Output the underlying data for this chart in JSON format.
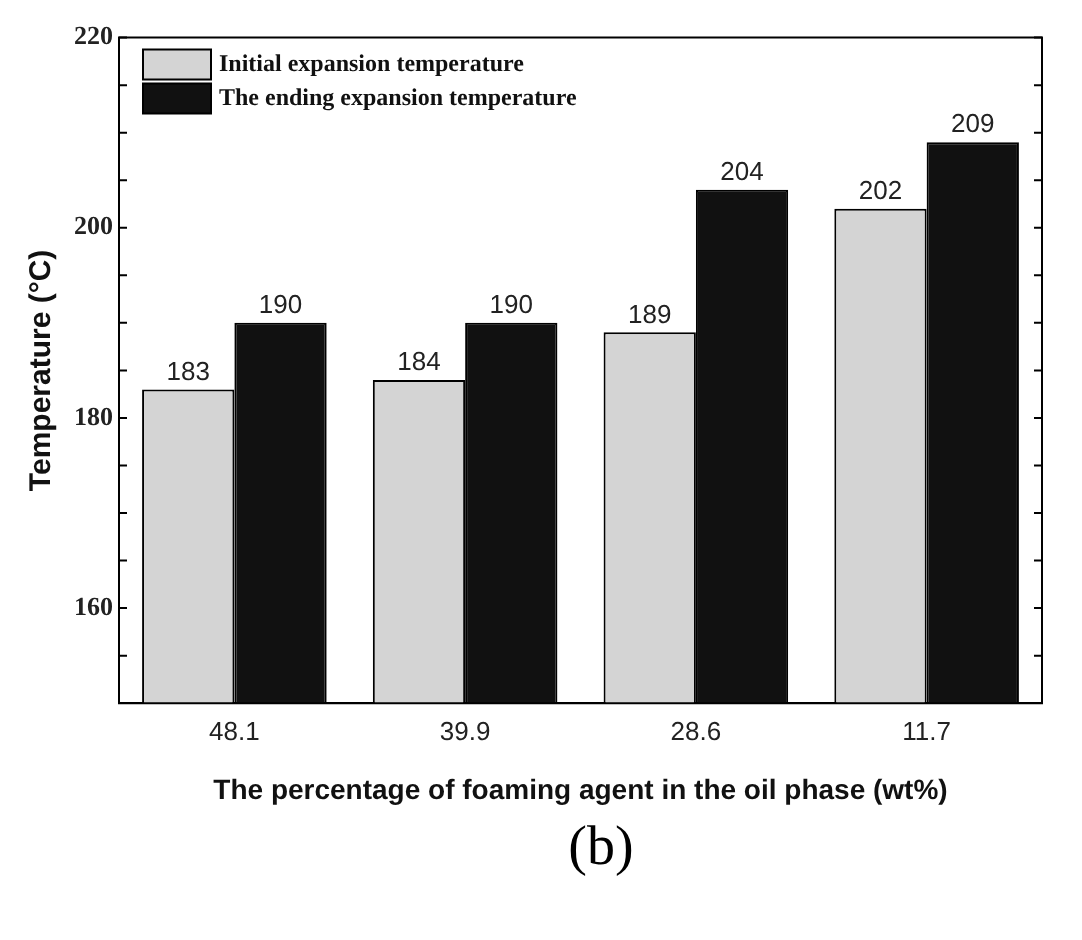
{
  "chart_data": {
    "type": "bar",
    "xlabel": "The percentage of foaming agent in the oil phase (wt%)",
    "ylabel": "Temperature (°C)",
    "categories": [
      "48.1",
      "39.9",
      "28.6",
      "11.7"
    ],
    "series": [
      {
        "name": "Initial expansion temperature",
        "color": "#d4d4d4",
        "values": [
          183,
          184,
          189,
          202
        ]
      },
      {
        "name": "The ending expansion temperature",
        "color": "#111111",
        "values": [
          190,
          190,
          204,
          209
        ]
      }
    ],
    "ylim": [
      150,
      220
    ],
    "yticks": [
      {
        "value": 155,
        "label": null
      },
      160,
      {
        "value": 165,
        "label": null
      },
      {
        "value": 170,
        "label": null
      },
      {
        "value": 175,
        "label": null
      },
      180,
      {
        "value": 185,
        "label": null
      },
      {
        "value": 190,
        "label": null
      },
      {
        "value": 195,
        "label": null
      },
      200,
      {
        "value": 205,
        "label": null
      },
      {
        "value": 210,
        "label": null
      },
      {
        "value": 215,
        "label": null
      },
      220
    ],
    "data_labels": true,
    "grid": false,
    "legend": "top left",
    "annotations": [
      "(b)"
    ]
  }
}
